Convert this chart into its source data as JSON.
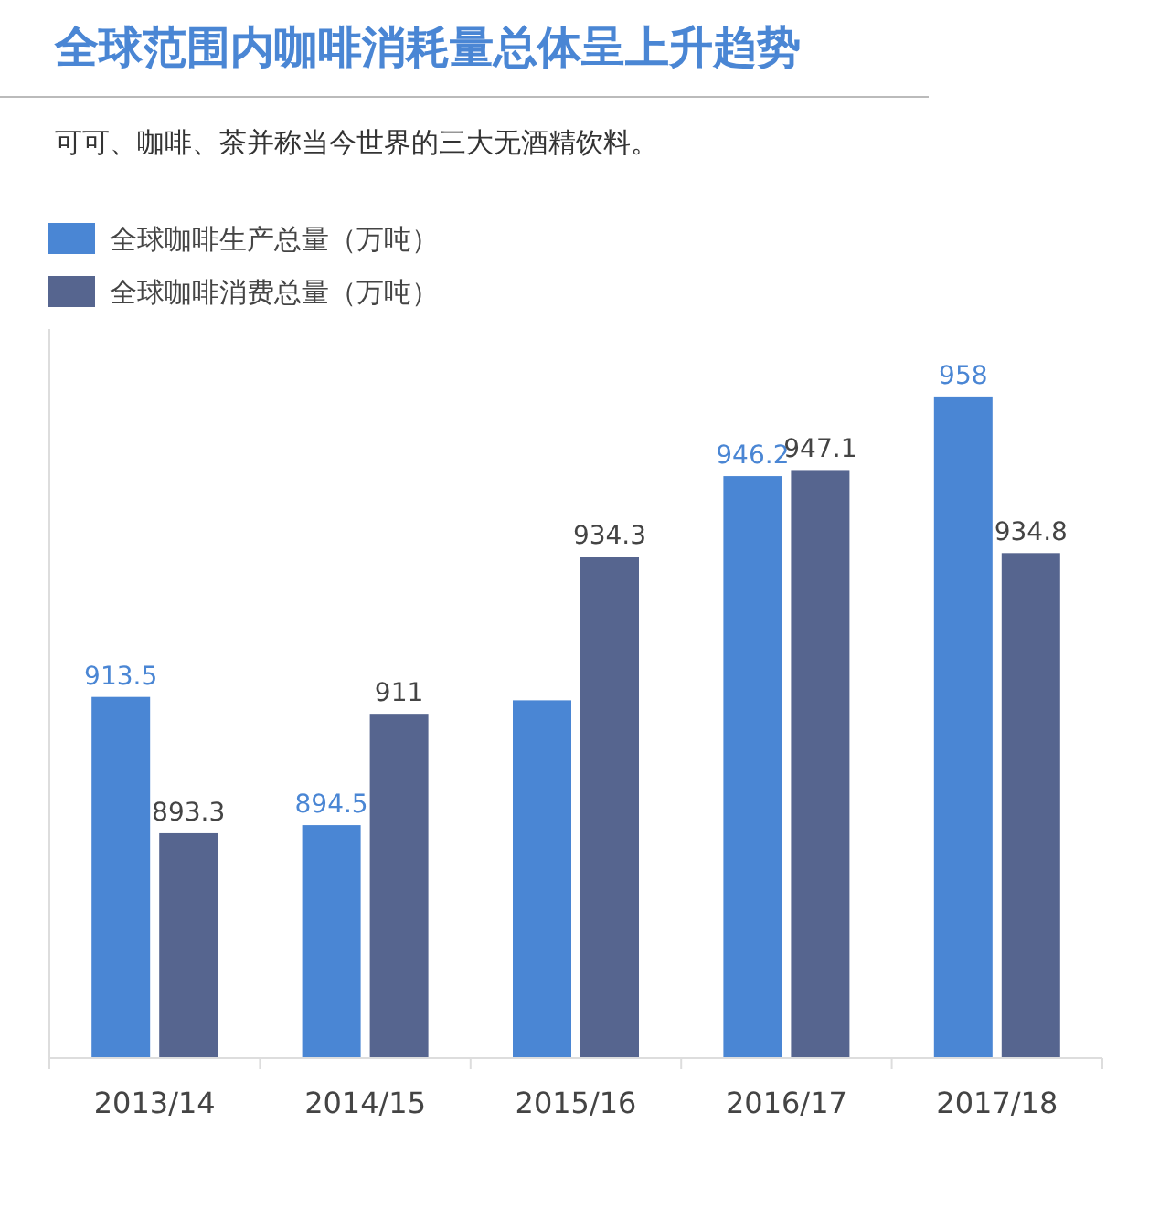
{
  "chart_data": {
    "type": "bar",
    "title": "全球范围内咖啡消耗量总体呈上升趋势",
    "subtitle": "可可、咖啡、茶并称当今世界的三大无酒精饮料。",
    "categories": [
      "2013/14",
      "2014/15",
      "2015/16",
      "2016/17",
      "2017/18"
    ],
    "series": [
      {
        "name": "全球咖啡生产总量（万吨）",
        "color": "#4a86d4",
        "values": [
          913.5,
          894.5,
          913,
          946.2,
          958
        ],
        "value_labels": [
          "913.5",
          "894.5",
          null,
          "946.2",
          "958"
        ]
      },
      {
        "name": "全球咖啡消费总量（万吨）",
        "color": "#56658f",
        "values": [
          893.3,
          911,
          934.3,
          947.1,
          934.8
        ],
        "value_labels": [
          "893.3",
          "911",
          "934.3",
          "947.1",
          "934.8"
        ]
      }
    ],
    "ylim": [
      860,
      968
    ],
    "legend": "top left",
    "grid": false
  }
}
